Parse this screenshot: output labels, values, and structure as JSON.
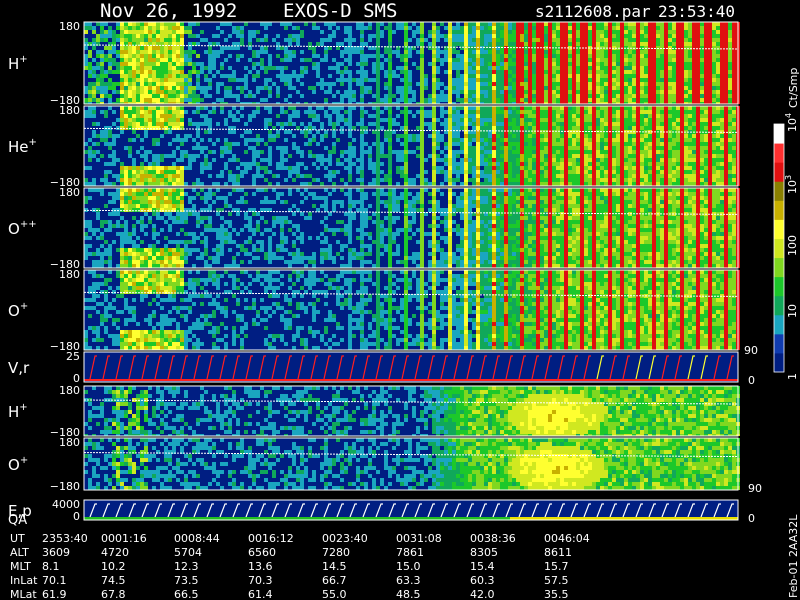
{
  "chart_data": {
    "type": "heatmap",
    "title": {
      "date": "Nov 26, 1992",
      "instrument": "EXOS-D SMS",
      "file": "s2112608.par",
      "time": "23:53:40"
    },
    "panels": [
      {
        "label_main": "H",
        "label_sup": "+",
        "top_tick": "180",
        "bottom_tick": "−180",
        "profile": "h"
      },
      {
        "label_main": "He",
        "label_sup": "+",
        "top_tick": "180",
        "bottom_tick": "−180",
        "profile": "he"
      },
      {
        "label_main": "O",
        "label_sup": "++",
        "top_tick": "180",
        "bottom_tick": "−180",
        "profile": "opp"
      },
      {
        "label_main": "O",
        "label_sup": "+",
        "top_tick": "180",
        "bottom_tick": "−180",
        "profile": "op"
      },
      {
        "label_main": "V,r",
        "label_sup": "",
        "top_tick": "25",
        "bottom_tick": "0",
        "right_top_tick": "90",
        "right_bottom_tick": "0",
        "profile": "v"
      },
      {
        "label_main": "H",
        "label_sup": "+",
        "top_tick": "180",
        "bottom_tick": "−180",
        "profile": "h2"
      },
      {
        "label_main": "O",
        "label_sup": "+",
        "top_tick": "180",
        "bottom_tick": "−180",
        "right_bottom_tick": "90",
        "profile": "o2"
      },
      {
        "label_main": "E,p",
        "label_sup": "",
        "top_tick": "4000",
        "bottom_tick": "0",
        "right_bottom_tick": "0",
        "profile": "e"
      }
    ],
    "extra_label": "QA",
    "colorbar": {
      "unit": "Ct/Smp",
      "ticks": [
        {
          "label": "1",
          "frac": 0.0
        },
        {
          "label": "10",
          "frac": 0.25
        },
        {
          "label": "100",
          "frac": 0.5
        },
        {
          "label": "10",
          "sup": "3",
          "frac": 0.75
        },
        {
          "label": "10",
          "sup": "4",
          "frac": 1.0
        }
      ]
    },
    "side_note": "Feb-01 2AA32L",
    "orbit_table": {
      "rows": [
        {
          "name": "UT",
          "values": [
            "2353:40",
            "0001:16",
            "0008:44",
            "0016:12",
            "0023:40",
            "0031:08",
            "0038:36",
            "0046:04"
          ]
        },
        {
          "name": "ALT",
          "values": [
            "3609",
            "4720",
            "5704",
            "6560",
            "7280",
            "7861",
            "8305",
            "8611"
          ]
        },
        {
          "name": "MLT",
          "values": [
            "8.1",
            "10.2",
            "12.3",
            "13.6",
            "14.5",
            "15.0",
            "15.4",
            "15.7"
          ]
        },
        {
          "name": "InLat",
          "values": [
            "70.1",
            "74.5",
            "73.5",
            "70.3",
            "66.7",
            "63.3",
            "60.3",
            "57.5"
          ]
        },
        {
          "name": "MLat",
          "values": [
            "61.9",
            "67.8",
            "66.5",
            "61.4",
            "55.0",
            "48.5",
            "42.0",
            "35.5"
          ]
        }
      ]
    },
    "colors": {
      "background": "#000000",
      "scale": [
        "#ffffff",
        "#ff0000",
        "#b8b400",
        "#ffff00",
        "#00cc33",
        "#0099cc",
        "#002080"
      ]
    }
  }
}
